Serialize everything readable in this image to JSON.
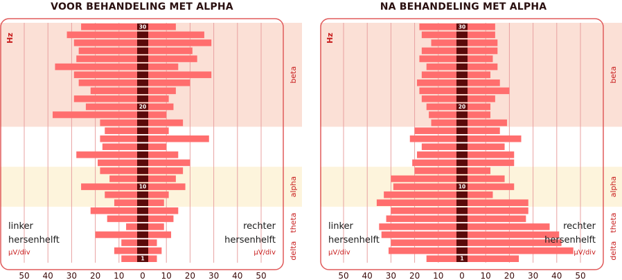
{
  "colors": {
    "bar": "#ff6e6e",
    "center_bar": "#5a0a0a",
    "grid": "#e8a0a0",
    "frame": "#e05a5a",
    "band_beta": "#fbe0d6",
    "band_alpha": "#fdf4dc",
    "band_theta_delta": "#ffffff",
    "band_label": "#c81e1e",
    "axis_text": "#3a0a0a"
  },
  "chart_data": [
    {
      "type": "bar",
      "title": "VOOR BEHANDELING MET ALPHA",
      "orientation": "horizontal-diverging",
      "ylabel": "Hz",
      "unit_label": "µV/div",
      "left_label": [
        "linker",
        "hersenhelft"
      ],
      "right_label": [
        "rechter",
        "hersenhelft"
      ],
      "x_ticks": [
        "50",
        "40",
        "30",
        "20",
        "10",
        "0",
        "10",
        "20",
        "30",
        "40",
        "50"
      ],
      "xlim": [
        -50,
        50
      ],
      "hz_range": [
        1,
        30
      ],
      "hz_tick_labels": [
        "30",
        "20",
        "10",
        "1"
      ],
      "bands": [
        {
          "name": "beta",
          "from": 18,
          "to": 30
        },
        {
          "name": "alpha",
          "from": 8,
          "to": 12
        },
        {
          "name": "theta",
          "from": 4,
          "to": 7
        },
        {
          "name": "delta",
          "from": 1,
          "to": 3
        }
      ],
      "hz": [
        30,
        29,
        28,
        27,
        26,
        25,
        24,
        23,
        22,
        21,
        20,
        19,
        18,
        17,
        16,
        15,
        14,
        13,
        12,
        11,
        10,
        9,
        8,
        7,
        6,
        5,
        4,
        3,
        2,
        1
      ],
      "left_values": [
        26,
        32,
        29,
        27,
        28,
        37,
        29,
        27,
        22,
        29,
        24,
        38,
        18,
        16,
        18,
        17,
        28,
        19,
        18,
        14,
        26,
        16,
        12,
        22,
        15,
        7,
        20,
        9,
        12,
        9
      ],
      "right_values": [
        14,
        26,
        29,
        21,
        23,
        15,
        29,
        20,
        14,
        11,
        13,
        10,
        17,
        11,
        28,
        10,
        15,
        20,
        17,
        14,
        18,
        11,
        9,
        15,
        13,
        9,
        12,
        6,
        8,
        6
      ]
    },
    {
      "type": "bar",
      "title": "NA BEHANDELING MET ALPHA",
      "orientation": "horizontal-diverging",
      "ylabel": "Hz",
      "unit_label": "µV/div",
      "left_label": [
        "linker",
        "hersenhelft"
      ],
      "right_label": [
        "rechter",
        "hersenhelft"
      ],
      "x_ticks": [
        "50",
        "40",
        "30",
        "20",
        "10",
        "0",
        "10",
        "20",
        "30",
        "40",
        "50"
      ],
      "xlim": [
        -50,
        50
      ],
      "hz_range": [
        1,
        30
      ],
      "hz_tick_labels": [
        "30",
        "20",
        "10",
        "1"
      ],
      "bands": [
        {
          "name": "beta",
          "from": 18,
          "to": 30
        },
        {
          "name": "alpha",
          "from": 8,
          "to": 12
        },
        {
          "name": "theta",
          "from": 4,
          "to": 7
        },
        {
          "name": "delta",
          "from": 1,
          "to": 3
        }
      ],
      "hz": [
        30,
        29,
        28,
        27,
        26,
        25,
        24,
        23,
        22,
        21,
        20,
        19,
        18,
        17,
        16,
        15,
        14,
        13,
        12,
        11,
        10,
        9,
        8,
        7,
        6,
        5,
        4,
        3,
        2,
        1
      ],
      "left_values": [
        18,
        17,
        13,
        17,
        18,
        15,
        17,
        19,
        18,
        17,
        15,
        14,
        13,
        20,
        22,
        17,
        19,
        21,
        20,
        30,
        29,
        33,
        36,
        30,
        32,
        35,
        34,
        30,
        31,
        15
      ],
      "right_values": [
        14,
        14,
        15,
        15,
        13,
        15,
        12,
        16,
        20,
        14,
        12,
        12,
        19,
        16,
        25,
        18,
        22,
        22,
        12,
        18,
        22,
        13,
        28,
        28,
        27,
        37,
        41,
        42,
        47,
        24
      ]
    }
  ]
}
